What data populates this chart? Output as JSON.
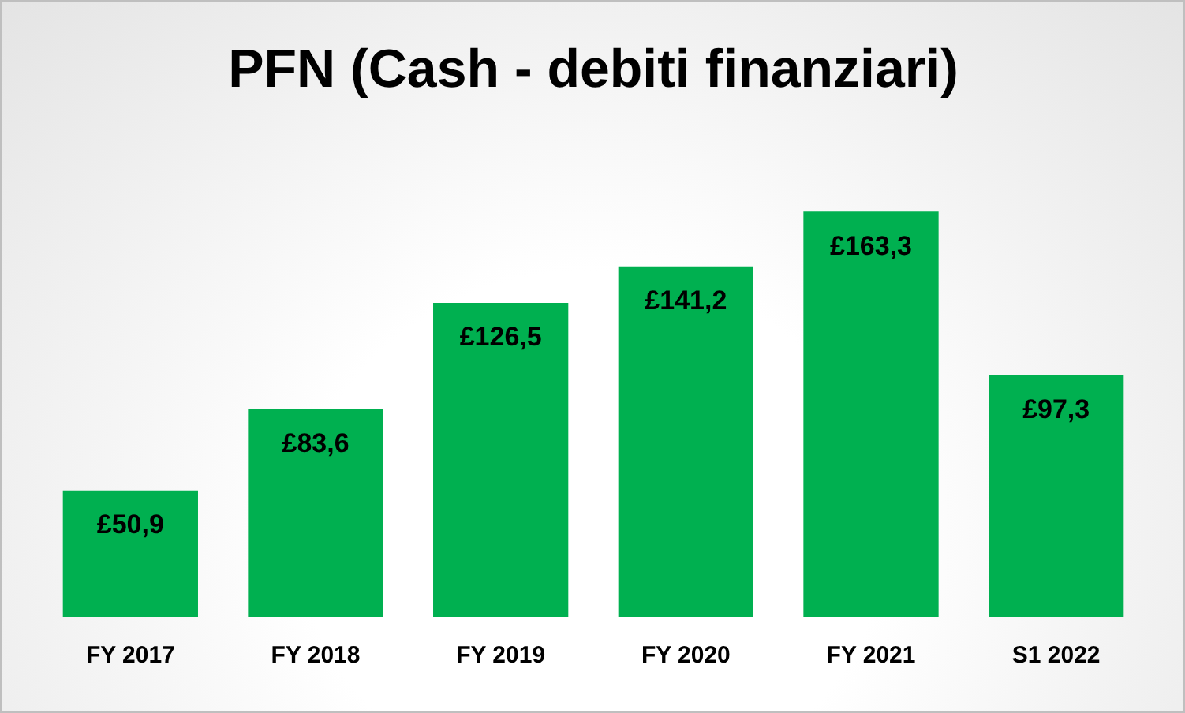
{
  "chart_data": {
    "type": "bar",
    "title": "PFN (Cash - debiti finanziari)",
    "categories": [
      "FY 2017",
      "FY 2018",
      "FY 2019",
      "FY 2020",
      "FY 2021",
      "S1 2022"
    ],
    "values": [
      50.9,
      83.6,
      126.5,
      141.2,
      163.3,
      97.3
    ],
    "value_labels": [
      "£50,9",
      "£83,6",
      "£126,5",
      "£141,2",
      "£163,3",
      "£97,3"
    ],
    "color": "#00b050",
    "grid": false,
    "legend": false
  }
}
